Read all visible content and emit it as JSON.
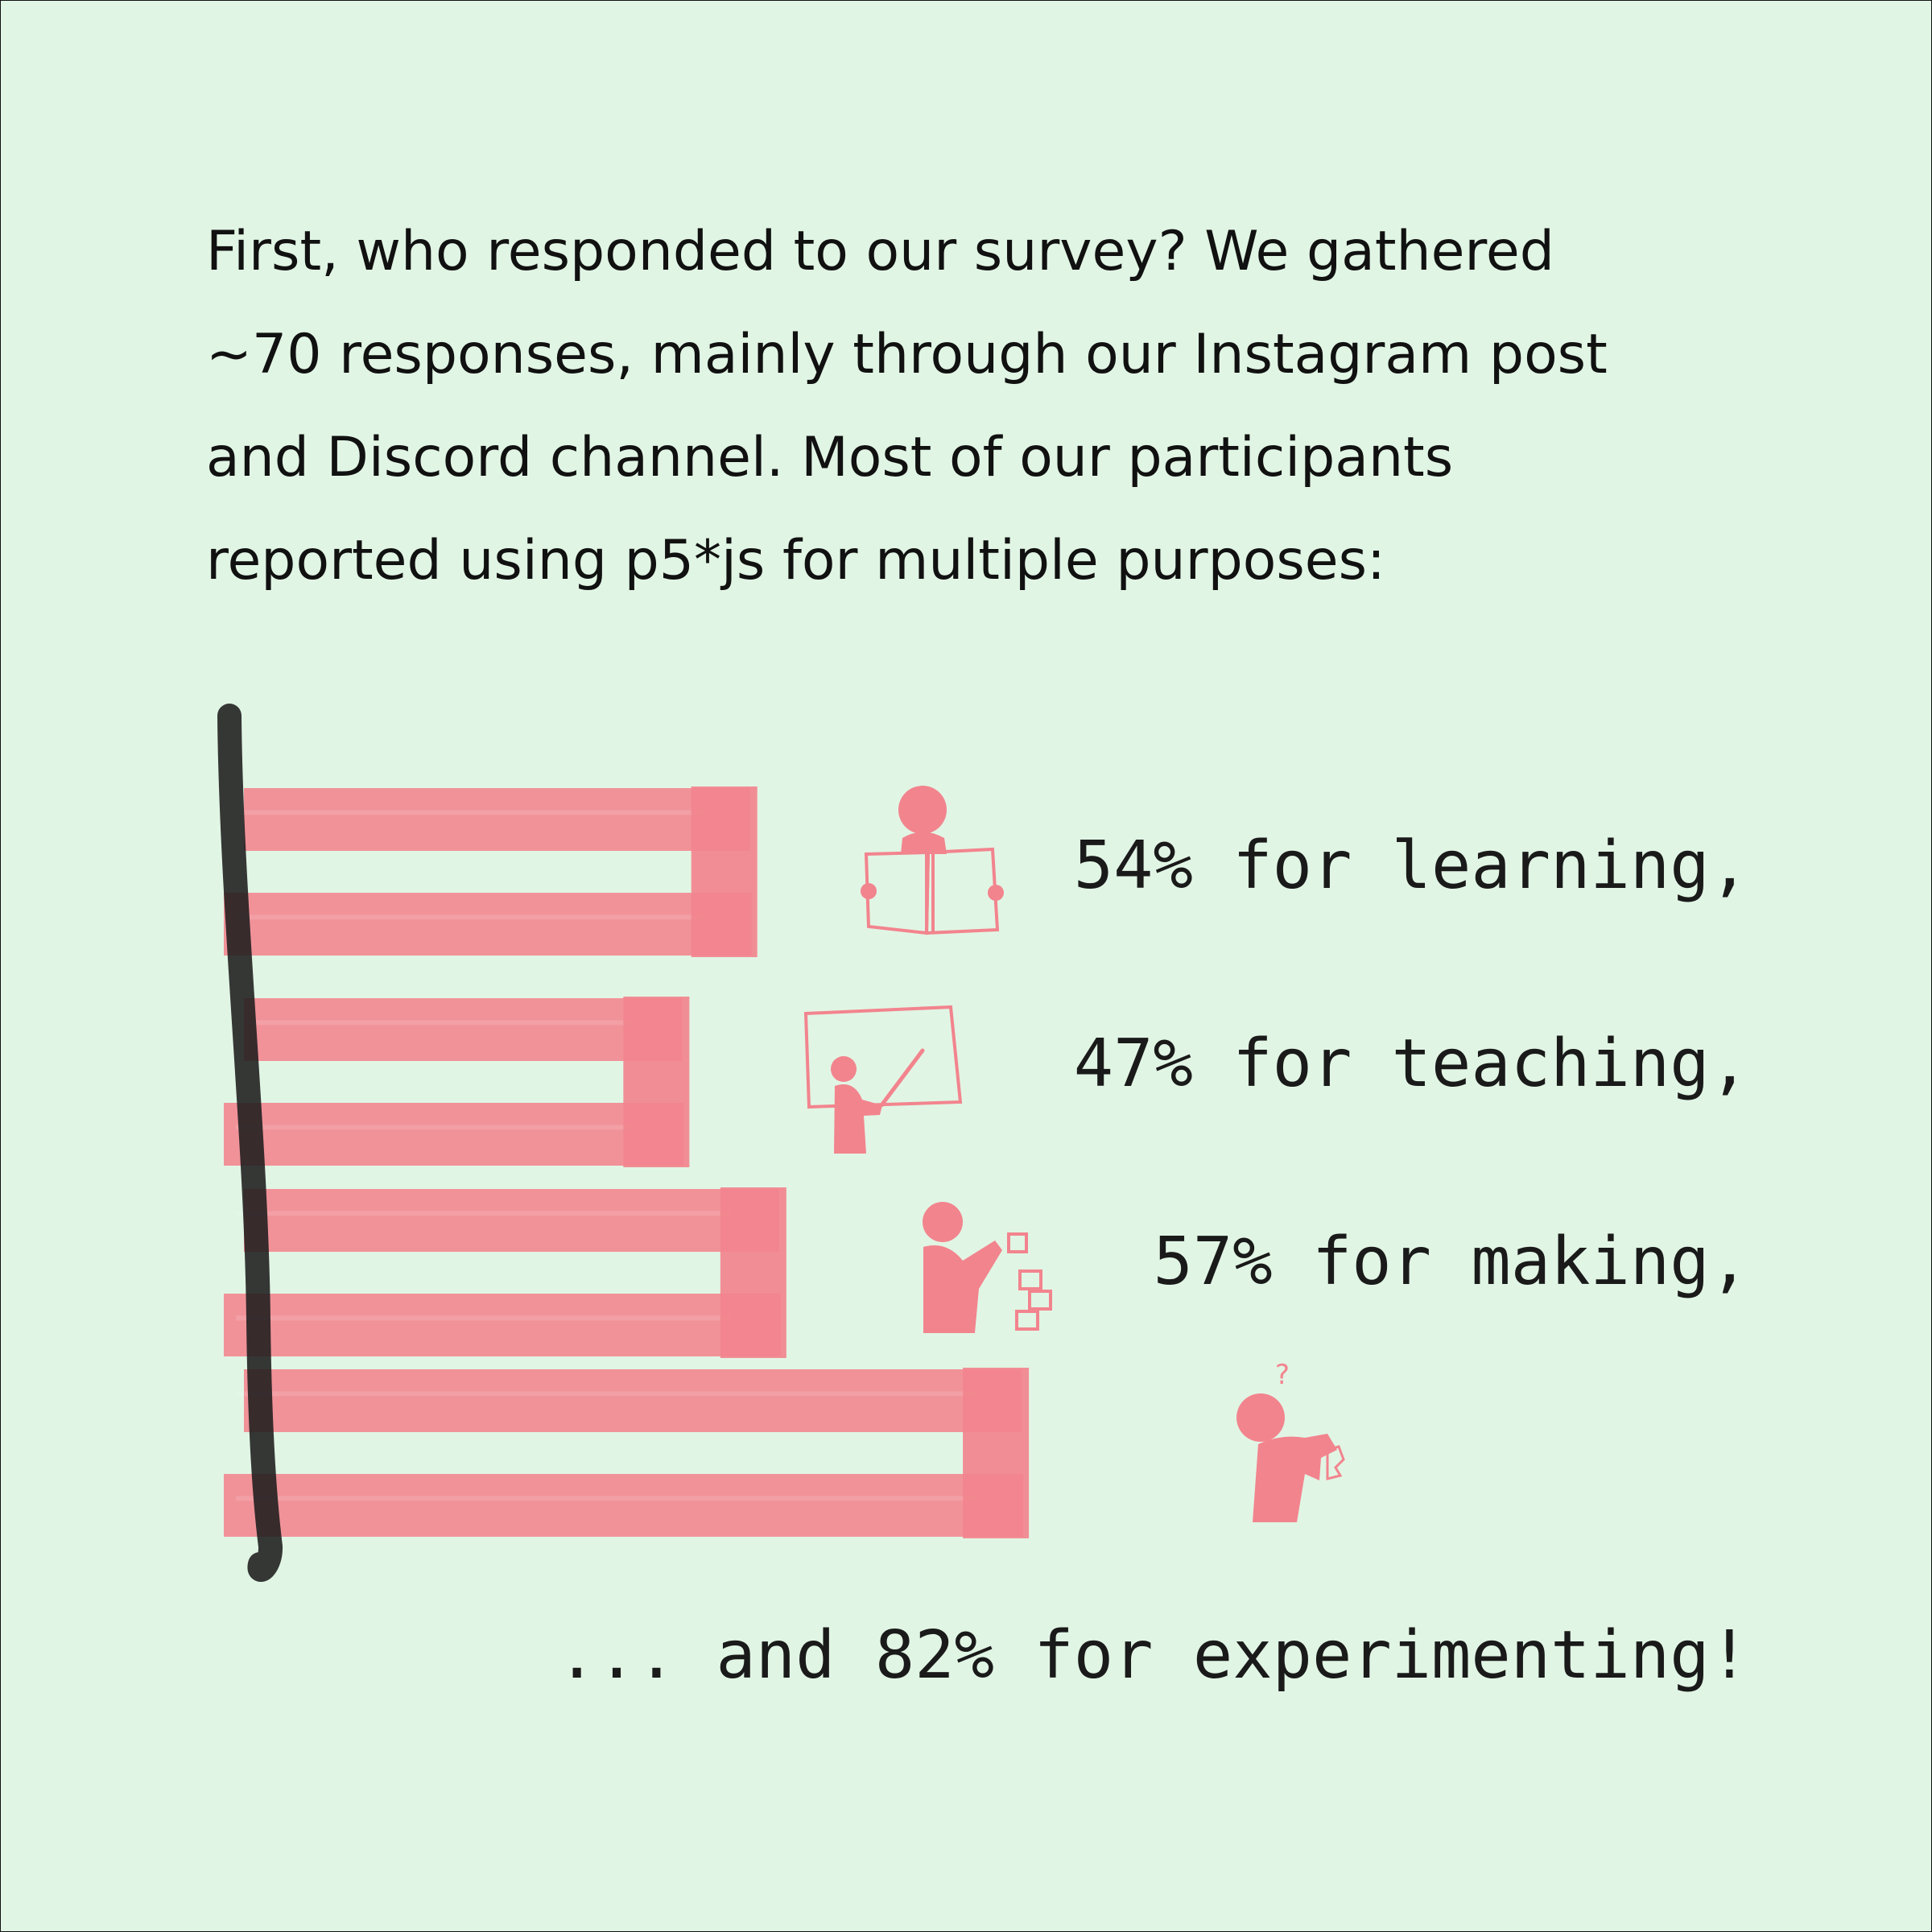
{
  "intro": {
    "lines": [
      "First, who responded to our survey? We gathered",
      "~70 responses, mainly through our Instagram post",
      "and Discord channel. Most of our participants",
      "reported using p5*js for multiple purposes:"
    ]
  },
  "colors": {
    "background": "#e1f5e4",
    "bar": "#f2848e",
    "axis": "#1c1c1c",
    "text": "#111111"
  },
  "chart_data": {
    "type": "bar",
    "orientation": "horizontal",
    "unit": "%",
    "categories": [
      "learning",
      "teaching",
      "making",
      "experimenting"
    ],
    "values": [
      54,
      47,
      57,
      82
    ],
    "labels": [
      "54% for learning,",
      "47% for teaching,",
      "57% for making,",
      "... and 82% for experimenting!"
    ],
    "icons": [
      "reading-person-icon",
      "teaching-person-icon",
      "making-person-icon",
      "experimenting-person-icon"
    ],
    "xlim": [
      0,
      100
    ],
    "axis_ticks": false,
    "grid": false,
    "legend": "none"
  }
}
